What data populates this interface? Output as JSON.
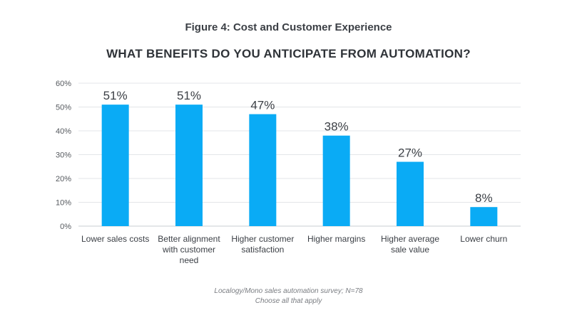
{
  "figure_title": "Figure 4: Cost and Customer Experience",
  "source_line1": "Localogy/Mono sales automation survey; N=78",
  "source_line2": "Choose all that apply",
  "colors": {
    "bar": "#0aabf5",
    "grid": "#e3e5e8",
    "text": "#3b3f45",
    "axis_text": "#55595e"
  },
  "chart_data": {
    "type": "bar",
    "title": "WHAT BENEFITS DO YOU ANTICIPATE FROM AUTOMATION?",
    "xlabel": "",
    "ylabel": "",
    "categories": [
      [
        "Lower sales costs"
      ],
      [
        "Better alignment",
        "with customer",
        "need"
      ],
      [
        "Higher customer",
        "satisfaction"
      ],
      [
        "Higher margins"
      ],
      [
        "Higher average",
        "sale value"
      ],
      [
        "Lower churn"
      ]
    ],
    "values": [
      51,
      51,
      47,
      38,
      27,
      8
    ],
    "value_labels": [
      "51%",
      "51%",
      "47%",
      "38%",
      "27%",
      "8%"
    ],
    "ylim": [
      0,
      60
    ],
    "yticks": [
      "0%",
      "10%",
      "20%",
      "30%",
      "40%",
      "50%",
      "60%"
    ],
    "grid": true,
    "legend": "none"
  }
}
